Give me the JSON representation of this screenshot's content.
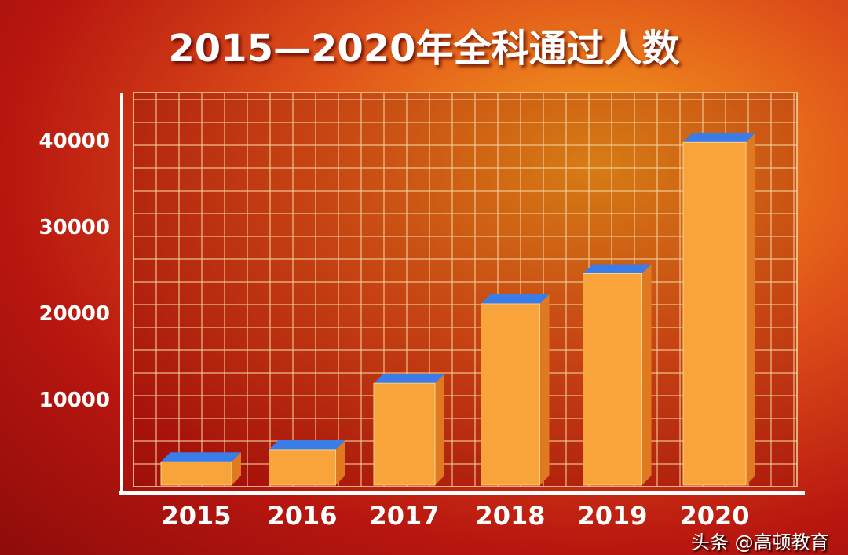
{
  "chart_data": {
    "type": "bar",
    "title": "2015—2020年全科通过人数",
    "categories": [
      "2015",
      "2016",
      "2017",
      "2018",
      "2019",
      "2020"
    ],
    "values": [
      2700,
      4100,
      11800,
      21000,
      24500,
      39700
    ],
    "yticks": [
      "10000",
      "20000",
      "30000",
      "40000"
    ],
    "ylim": [
      0,
      45000
    ],
    "xlabel": "",
    "ylabel": "",
    "grid": true,
    "colors": {
      "bar_front": "#f9a43a",
      "bar_side": "#e07a20",
      "bar_top": "#3a7ce8",
      "grid": "#f4d7a0"
    }
  },
  "watermark": "头条 @高顿教育"
}
